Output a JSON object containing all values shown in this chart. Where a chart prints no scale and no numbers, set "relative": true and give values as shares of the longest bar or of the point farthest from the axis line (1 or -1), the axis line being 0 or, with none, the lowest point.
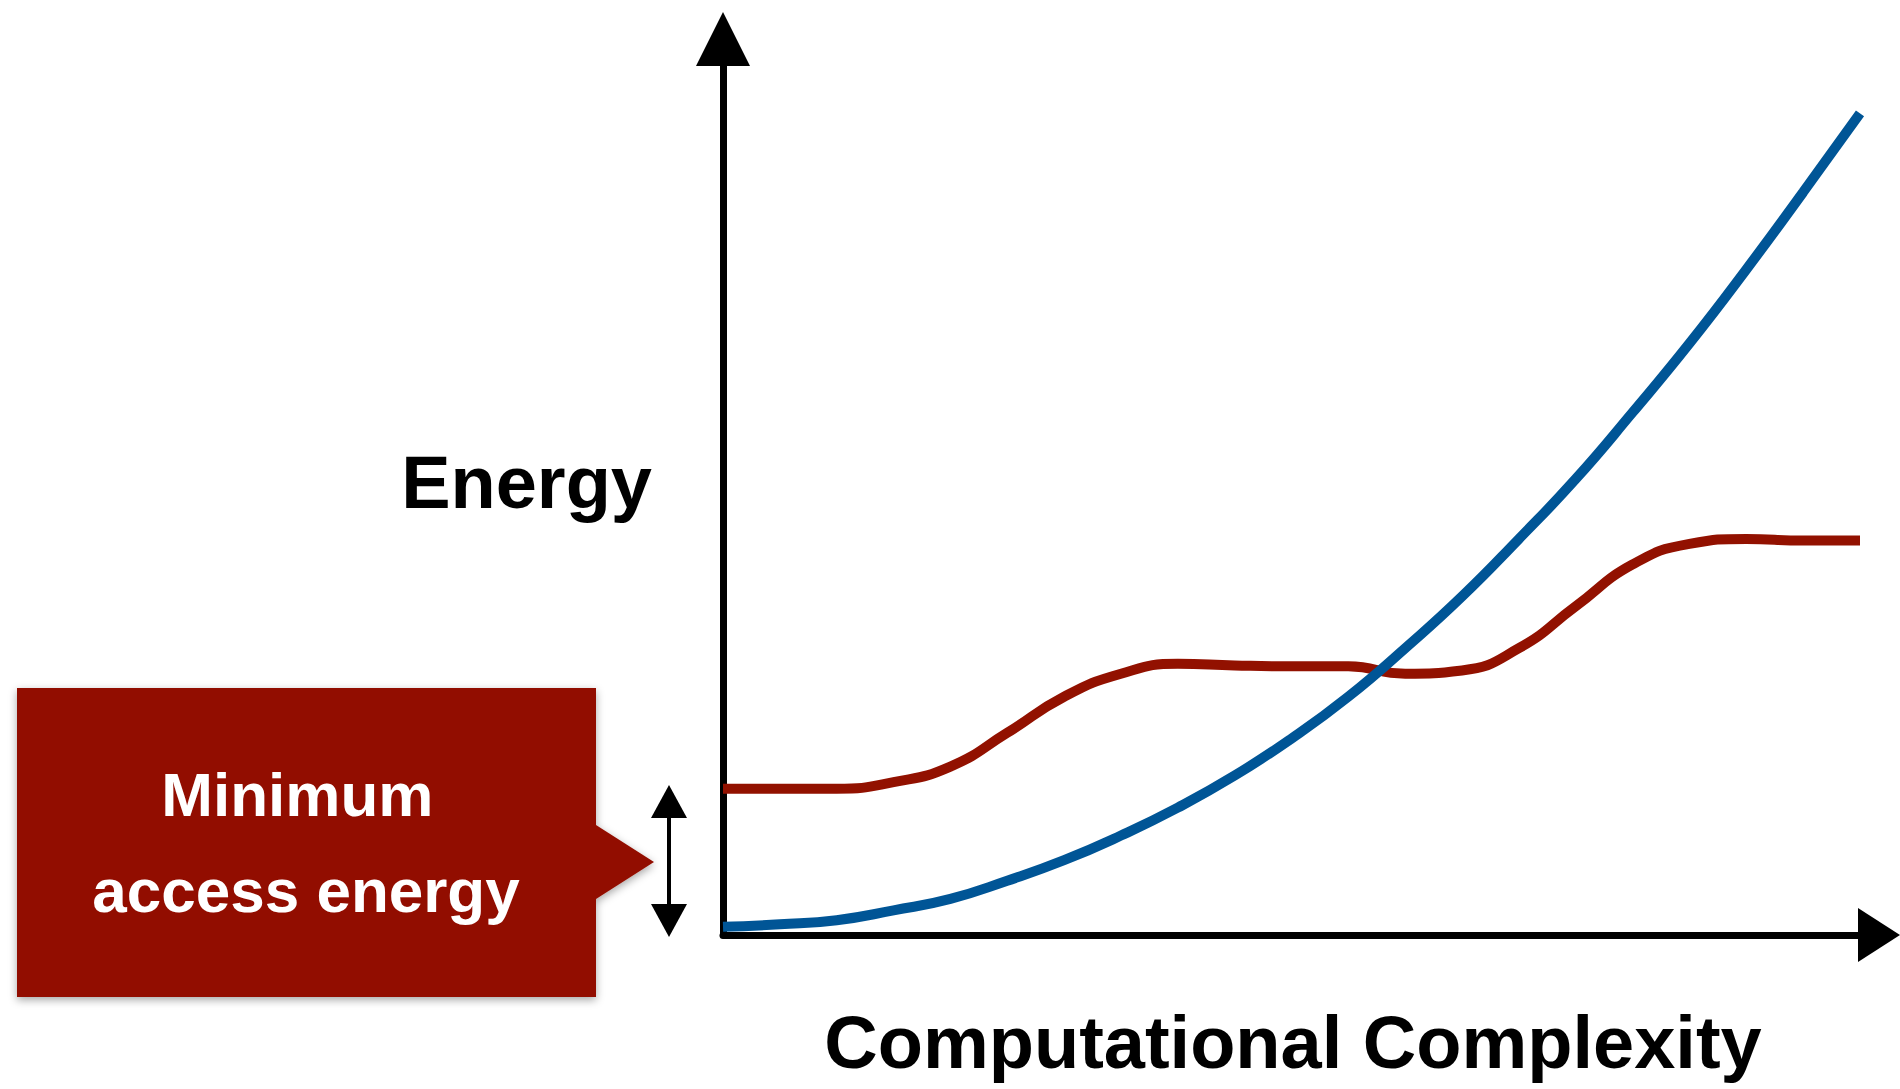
{
  "chart_data": {
    "type": "line",
    "relative": true,
    "xlabel": "Computational Complexity",
    "ylabel": "Energy",
    "annotations": [
      "Minimum access energy"
    ],
    "marker": "none",
    "line_style": "solid",
    "grid": false,
    "categories": [
      null,
      null,
      null,
      null,
      null,
      null,
      null,
      null,
      null,
      null,
      null,
      null,
      null,
      null,
      null,
      null,
      null,
      null,
      null,
      null,
      null
    ],
    "series": [
      {
        "color": "#921100",
        "values": [
          0.178,
          0.178,
          0.178,
          0.186,
          0.205,
          0.246,
          0.29,
          0.318,
          0.33,
          0.328,
          0.327,
          0.327,
          0.318,
          0.322,
          0.349,
          0.4,
          0.451,
          0.476,
          0.482,
          0.48,
          0.48
        ]
      },
      {
        "color": "#005596",
        "values": [
          0.01,
          0.013,
          0.018,
          0.03,
          0.044,
          0.066,
          0.091,
          0.121,
          0.155,
          0.194,
          0.239,
          0.29,
          0.349,
          0.412,
          0.482,
          0.555,
          0.636,
          0.72,
          0.81,
          0.904,
          1
        ]
      }
    ]
  }
}
